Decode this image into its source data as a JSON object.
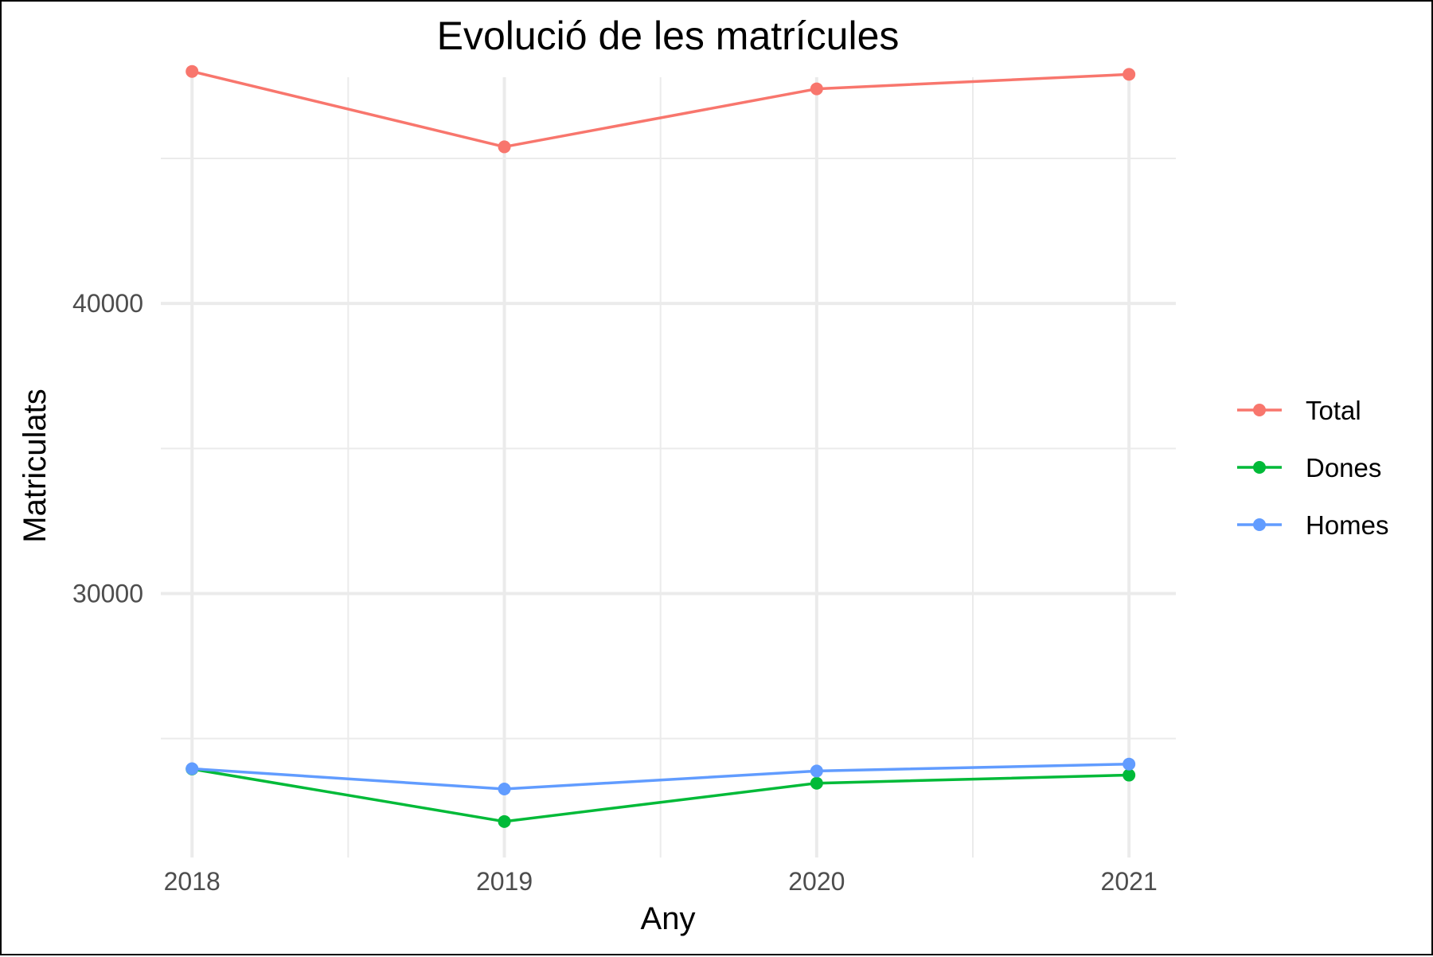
{
  "chart_data": {
    "type": "line",
    "title": "Evolució de les matrícules",
    "xlabel": "Any",
    "ylabel": "Matriculats",
    "categories": [
      "2018",
      "2019",
      "2020",
      "2021"
    ],
    "x": [
      2018,
      2019,
      2020,
      2021
    ],
    "xlim": [
      2017.9,
      2021.15
    ],
    "ylim": [
      20900,
      47800
    ],
    "yticks": [
      30000,
      40000
    ],
    "yminor": [
      25000,
      35000,
      45000
    ],
    "xminor": [
      2018.5,
      2019.5,
      2020.5
    ],
    "grid": true,
    "legend_position": "right",
    "series": [
      {
        "name": "Total",
        "color": "#F8766D",
        "values": [
          48000,
          45400,
          47400,
          47900
        ]
      },
      {
        "name": "Dones",
        "color": "#00BA38",
        "values": [
          23950,
          22140,
          23460,
          23740
        ]
      },
      {
        "name": "Homes",
        "color": "#619CFF",
        "values": [
          23960,
          23260,
          23880,
          24120
        ]
      }
    ]
  }
}
